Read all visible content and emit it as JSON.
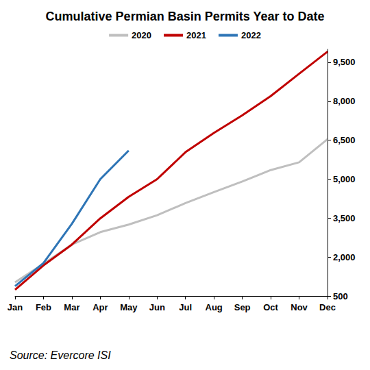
{
  "chart_data": {
    "type": "line",
    "title": "Cumulative Permian Basin Permits Year to Date",
    "annotations": [
      "Source: Evercore ISI"
    ],
    "categories": [
      "Jan",
      "Feb",
      "Mar",
      "Apr",
      "May",
      "Jun",
      "Jul",
      "Aug",
      "Sep",
      "Oct",
      "Nov",
      "Dec"
    ],
    "series": [
      {
        "name": "2020",
        "color": "#bfbfbf",
        "values": [
          1030,
          1740,
          2480,
          2960,
          3250,
          3610,
          4080,
          4500,
          4910,
          5350,
          5650,
          6540
        ]
      },
      {
        "name": "2021",
        "color": "#c00000",
        "values": [
          740,
          1680,
          2480,
          3490,
          4320,
          5000,
          6040,
          6780,
          7460,
          8200,
          9060,
          9910
        ]
      },
      {
        "name": "2022",
        "color": "#2e75b6",
        "values": [
          880,
          1770,
          3280,
          5000,
          6100,
          null,
          null,
          null,
          null,
          null,
          null,
          null
        ]
      }
    ],
    "ylim": [
      500,
      10000
    ],
    "yticks": [
      500,
      {
        "value": 2000,
        "label": "2,000"
      },
      {
        "value": 3500,
        "label": "3,500"
      },
      {
        "value": 5000,
        "label": "5,000"
      },
      {
        "value": 6500,
        "label": "6,500"
      },
      {
        "value": 8000,
        "label": "8,000"
      },
      {
        "value": 9500,
        "label": "9,500"
      }
    ],
    "grid": false,
    "legend": "top"
  }
}
